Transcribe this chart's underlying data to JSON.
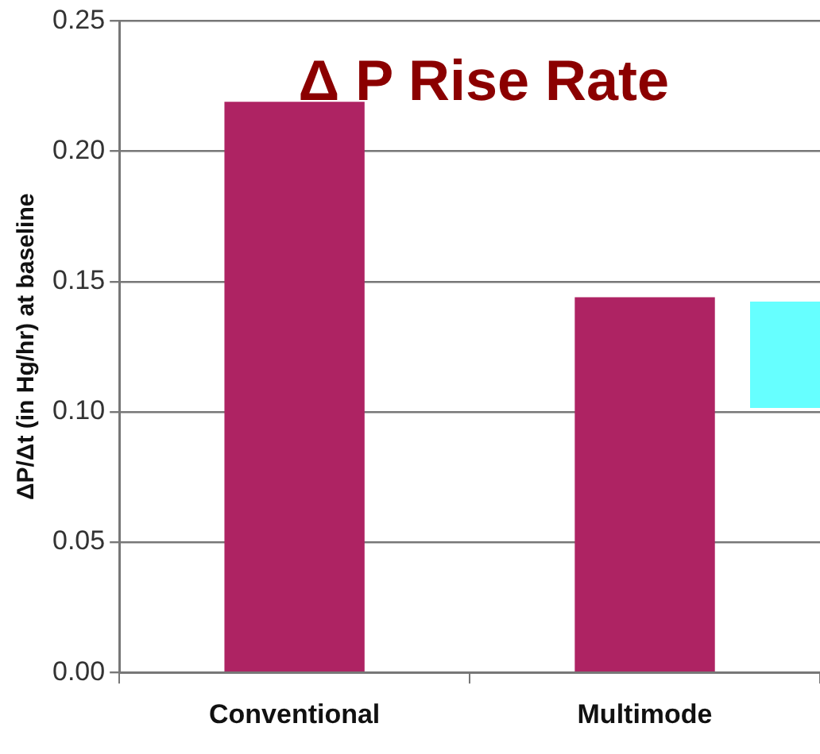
{
  "chart_data": {
    "type": "bar",
    "title": "Δ P Rise Rate",
    "ylabel": "ΔP/Δt (in Hg/hr) at baseline",
    "categories": [
      "Conventional",
      "Multimode"
    ],
    "values": [
      0.219,
      0.144
    ],
    "color": "#ae2363",
    "ylim": [
      0,
      0.25
    ],
    "yticks": [
      {
        "value": 0,
        "label": "0.00"
      },
      {
        "value": 0.05,
        "label": "0.05"
      },
      {
        "value": 0.1,
        "label": "0.10"
      },
      {
        "value": 0.15,
        "label": "0.15"
      },
      {
        "value": 0.2,
        "label": "0.20"
      },
      {
        "value": 0.25,
        "label": "0.25"
      }
    ],
    "grid": "y",
    "legend": false
  }
}
